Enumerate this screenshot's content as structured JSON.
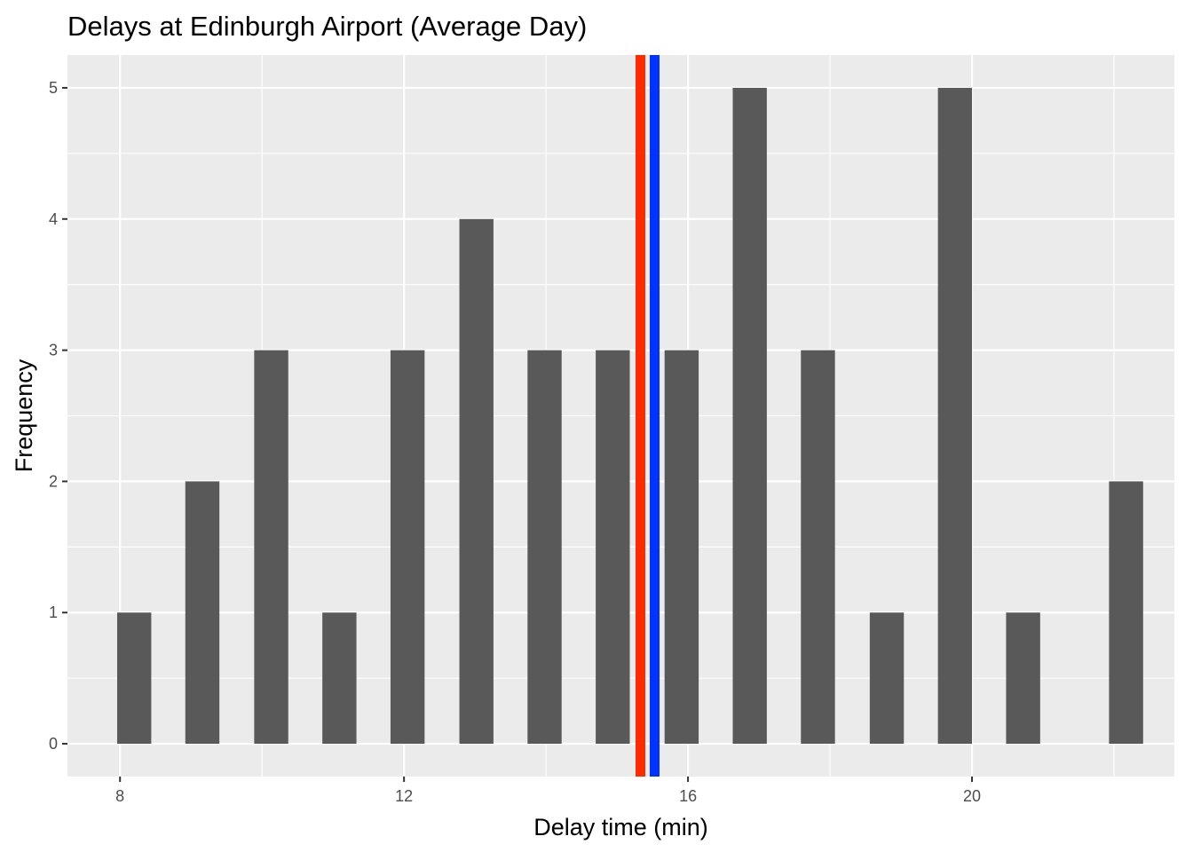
{
  "chart_data": {
    "type": "bar",
    "title": "Delays at Edinburgh Airport (Average Day)",
    "xlabel": "Delay time (min)",
    "ylabel": "Frequency",
    "x_ticks": [
      "8",
      "12",
      "16",
      "20"
    ],
    "x_tick_values": [
      8,
      12,
      16,
      20
    ],
    "y_ticks": [
      "0",
      "1",
      "2",
      "3",
      "4",
      "5"
    ],
    "y_tick_values": [
      0,
      1,
      2,
      3,
      4,
      5
    ],
    "xlim": [
      7.26,
      22.85
    ],
    "ylim": [
      -0.25,
      5.25
    ],
    "bar_width": 0.48,
    "x": [
      8.2,
      9.16,
      10.13,
      11.09,
      12.05,
      13.02,
      13.98,
      14.94,
      15.91,
      16.87,
      17.83,
      18.8,
      19.76,
      20.72,
      22.17
    ],
    "values": [
      1,
      2,
      3,
      1,
      3,
      4,
      3,
      3,
      3,
      5,
      3,
      1,
      5,
      1,
      2
    ],
    "vlines": [
      {
        "x": 15.33,
        "color": "#ff2a00"
      },
      {
        "x": 15.53,
        "color": "#0033ff"
      }
    ],
    "grid": true,
    "colors": {
      "panel": "#ebebeb",
      "grid": "#ffffff",
      "bar": "#595959",
      "tick": "#4d4d4d"
    }
  }
}
